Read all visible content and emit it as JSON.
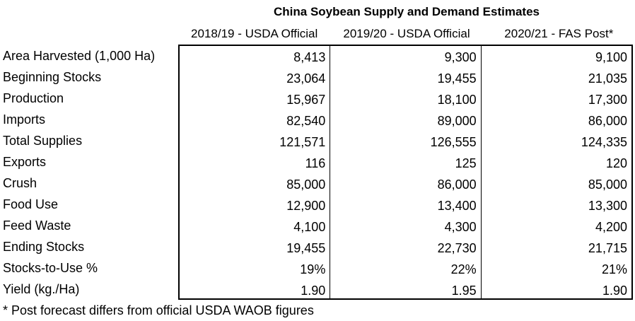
{
  "title": "China Soybean Supply and Demand Estimates",
  "headers": [
    "2018/19 - USDA Official",
    "2019/20 - USDA Official",
    "2020/21 - FAS Post*"
  ],
  "rows": [
    {
      "label": "Area Harvested (1,000 Ha)",
      "values": [
        "8,413",
        "9,300",
        "9,100"
      ]
    },
    {
      "label": "Beginning Stocks",
      "values": [
        "23,064",
        "19,455",
        "21,035"
      ]
    },
    {
      "label": "Production",
      "values": [
        "15,967",
        "18,100",
        "17,300"
      ]
    },
    {
      "label": "Imports",
      "values": [
        "82,540",
        "89,000",
        "86,000"
      ]
    },
    {
      "label": "Total Supplies",
      "values": [
        "121,571",
        "126,555",
        "124,335"
      ]
    },
    {
      "label": "Exports",
      "values": [
        "116",
        "125",
        "120"
      ]
    },
    {
      "label": "Crush",
      "values": [
        "85,000",
        "86,000",
        "85,000"
      ]
    },
    {
      "label": "Food Use",
      "values": [
        "12,900",
        "13,400",
        "13,300"
      ]
    },
    {
      "label": "Feed Waste",
      "values": [
        "4,100",
        "4,300",
        "4,200"
      ]
    },
    {
      "label": "Ending Stocks",
      "values": [
        "19,455",
        "22,730",
        "21,715"
      ]
    },
    {
      "label": "Stocks-to-Use %",
      "values": [
        "19%",
        "22%",
        "21%"
      ]
    },
    {
      "label": "Yield (kg./Ha)",
      "values": [
        "1.90",
        "1.95",
        "1.90"
      ]
    }
  ],
  "footnote": "* Post forecast differs from official USDA WAOB figures"
}
